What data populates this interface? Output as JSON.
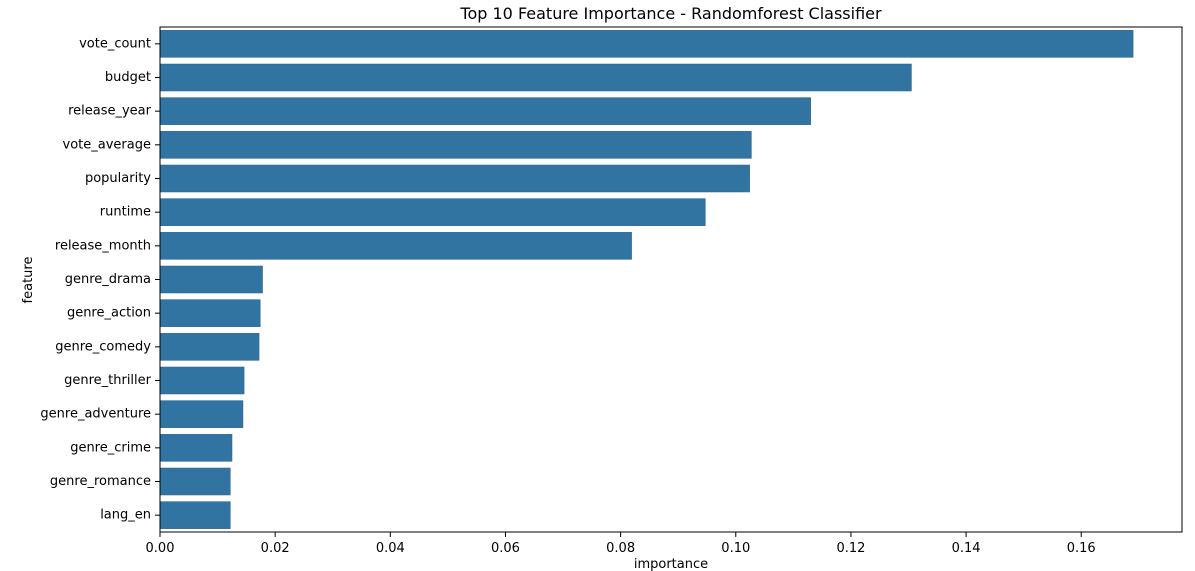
{
  "chart_data": {
    "type": "bar",
    "orientation": "horizontal",
    "title": "Top 10 Feature Importance - Randomforest Classifier",
    "xlabel": "importance",
    "ylabel": "feature",
    "xlim": [
      0,
      0.1775
    ],
    "xticks": [
      0.0,
      0.02,
      0.04,
      0.06,
      0.08,
      0.1,
      0.12,
      0.14,
      0.16
    ],
    "xtick_labels": [
      "0.00",
      "0.02",
      "0.04",
      "0.06",
      "0.08",
      "0.10",
      "0.12",
      "0.14",
      "0.16"
    ],
    "categories": [
      "vote_count",
      "budget",
      "release_year",
      "vote_average",
      "popularity",
      "runtime",
      "release_month",
      "genre_drama",
      "genre_action",
      "genre_comedy",
      "genre_thriller",
      "genre_adventure",
      "genre_crime",
      "genre_romance",
      "lang_en"
    ],
    "values": [
      0.169,
      0.1305,
      0.113,
      0.1027,
      0.1024,
      0.0947,
      0.0819,
      0.0178,
      0.0174,
      0.0172,
      0.0146,
      0.0144,
      0.0125,
      0.0122,
      0.0122
    ],
    "bar_color": "#3274a1",
    "grid": false
  }
}
